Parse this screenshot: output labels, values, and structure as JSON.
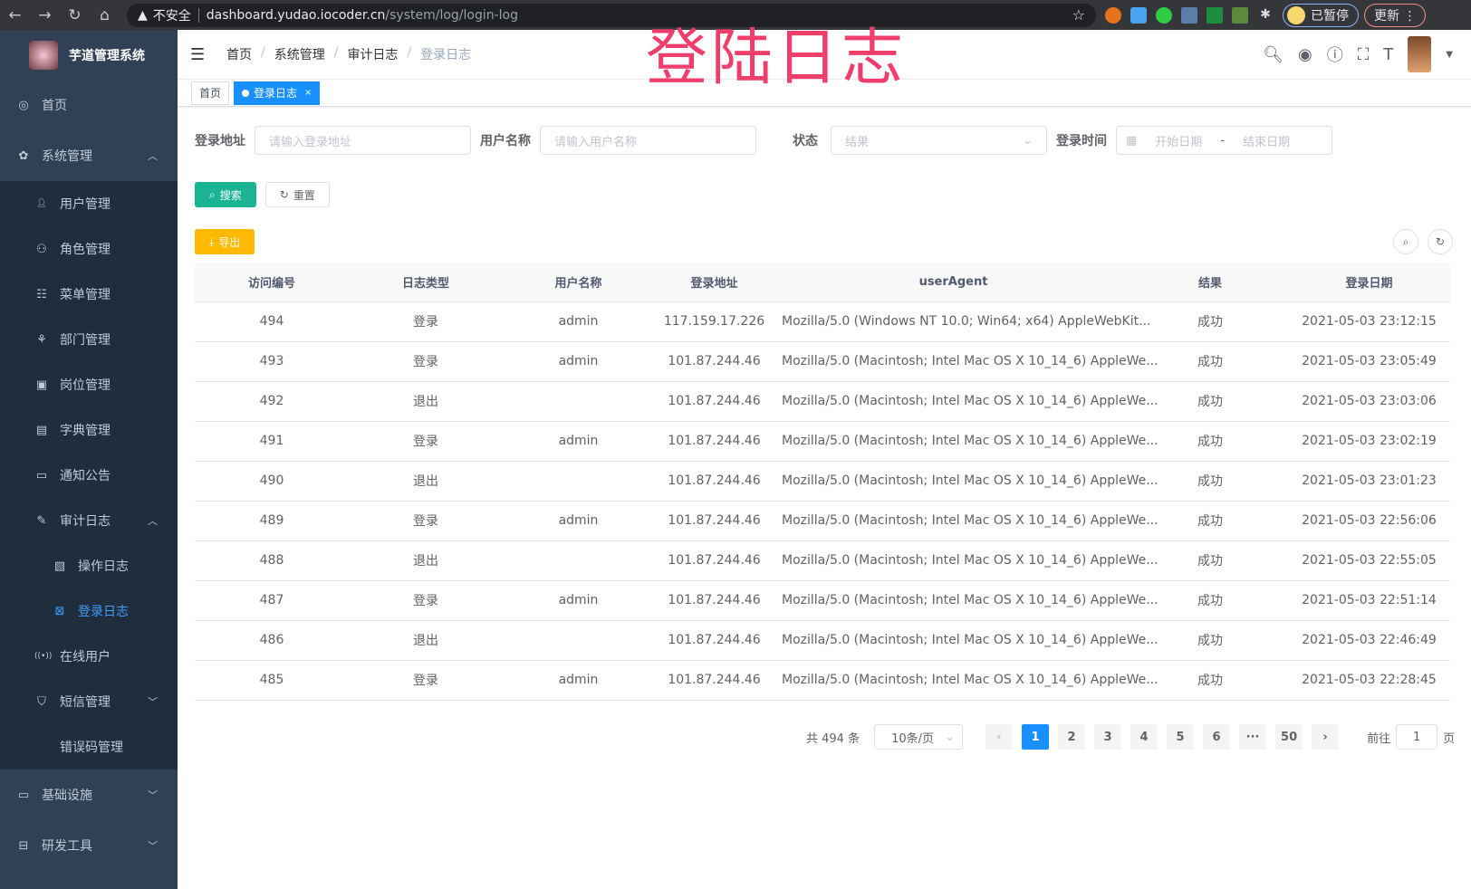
{
  "browser": {
    "insecure": "不安全",
    "url_host": "dashboard.yudao.iocoder.cn",
    "url_path": "/system/log/login-log",
    "paused": "已暂停",
    "update": "更新"
  },
  "overlay_title": "登陆日志",
  "sidebar": {
    "title": "芋道管理系统",
    "items": [
      {
        "label": "首页",
        "icon": "dashboard-icon",
        "level": 0
      },
      {
        "label": "系统管理",
        "icon": "gear-icon",
        "level": 0,
        "expanded": true
      },
      {
        "label": "用户管理",
        "icon": "user-icon",
        "level": 1
      },
      {
        "label": "角色管理",
        "icon": "role-icon",
        "level": 1
      },
      {
        "label": "菜单管理",
        "icon": "menu-tree-icon",
        "level": 1
      },
      {
        "label": "部门管理",
        "icon": "org-icon",
        "level": 1
      },
      {
        "label": "岗位管理",
        "icon": "post-icon",
        "level": 1
      },
      {
        "label": "字典管理",
        "icon": "dict-icon",
        "level": 1
      },
      {
        "label": "通知公告",
        "icon": "message-icon",
        "level": 1
      },
      {
        "label": "审计日志",
        "icon": "edit-icon",
        "level": 1,
        "expanded": true
      },
      {
        "label": "操作日志",
        "icon": "form-icon",
        "level": 2
      },
      {
        "label": "登录日志",
        "icon": "login-log-icon",
        "level": 2,
        "active": true
      },
      {
        "label": "在线用户",
        "icon": "online-icon",
        "level": 1
      },
      {
        "label": "短信管理",
        "icon": "shield-icon",
        "level": 1,
        "expanded": false
      },
      {
        "label": "错误码管理",
        "icon": "code-icon",
        "level": 1
      },
      {
        "label": "基础设施",
        "icon": "monitor-icon",
        "level": 0,
        "expanded": false
      },
      {
        "label": "研发工具",
        "icon": "tool-icon",
        "level": 0,
        "expanded": false
      }
    ]
  },
  "breadcrumb": [
    "首页",
    "系统管理",
    "审计日志",
    "登录日志"
  ],
  "tags": [
    {
      "label": "首页"
    },
    {
      "label": "登录日志",
      "active": true
    }
  ],
  "filters": {
    "address": {
      "label": "登录地址",
      "placeholder": "请输入登录地址"
    },
    "username": {
      "label": "用户名称",
      "placeholder": "请输入用户名称"
    },
    "status": {
      "label": "状态",
      "placeholder": "结果"
    },
    "time": {
      "label": "登录时间",
      "start": "开始日期",
      "sep": "-",
      "end": "结束日期"
    }
  },
  "buttons": {
    "search": "搜索",
    "reset": "重置",
    "export": "导出"
  },
  "table": {
    "columns": [
      "访问编号",
      "日志类型",
      "用户名称",
      "登录地址",
      "userAgent",
      "结果",
      "登录日期"
    ],
    "rows": [
      [
        "494",
        "登录",
        "admin",
        "117.159.17.226",
        "Mozilla/5.0 (Windows NT 10.0; Win64; x64) AppleWebKit...",
        "成功",
        "2021-05-03 23:12:15"
      ],
      [
        "493",
        "登录",
        "admin",
        "101.87.244.46",
        "Mozilla/5.0 (Macintosh; Intel Mac OS X 10_14_6) AppleWe...",
        "成功",
        "2021-05-03 23:05:49"
      ],
      [
        "492",
        "退出",
        "",
        "101.87.244.46",
        "Mozilla/5.0 (Macintosh; Intel Mac OS X 10_14_6) AppleWe...",
        "成功",
        "2021-05-03 23:03:06"
      ],
      [
        "491",
        "登录",
        "admin",
        "101.87.244.46",
        "Mozilla/5.0 (Macintosh; Intel Mac OS X 10_14_6) AppleWe...",
        "成功",
        "2021-05-03 23:02:19"
      ],
      [
        "490",
        "退出",
        "",
        "101.87.244.46",
        "Mozilla/5.0 (Macintosh; Intel Mac OS X 10_14_6) AppleWe...",
        "成功",
        "2021-05-03 23:01:23"
      ],
      [
        "489",
        "登录",
        "admin",
        "101.87.244.46",
        "Mozilla/5.0 (Macintosh; Intel Mac OS X 10_14_6) AppleWe...",
        "成功",
        "2021-05-03 22:56:06"
      ],
      [
        "488",
        "退出",
        "",
        "101.87.244.46",
        "Mozilla/5.0 (Macintosh; Intel Mac OS X 10_14_6) AppleWe...",
        "成功",
        "2021-05-03 22:55:05"
      ],
      [
        "487",
        "登录",
        "admin",
        "101.87.244.46",
        "Mozilla/5.0 (Macintosh; Intel Mac OS X 10_14_6) AppleWe...",
        "成功",
        "2021-05-03 22:51:14"
      ],
      [
        "486",
        "退出",
        "",
        "101.87.244.46",
        "Mozilla/5.0 (Macintosh; Intel Mac OS X 10_14_6) AppleWe...",
        "成功",
        "2021-05-03 22:46:49"
      ],
      [
        "485",
        "登录",
        "admin",
        "101.87.244.46",
        "Mozilla/5.0 (Macintosh; Intel Mac OS X 10_14_6) AppleWe...",
        "成功",
        "2021-05-03 22:28:45"
      ]
    ]
  },
  "pagination": {
    "total": "共 494 条",
    "page_size": "10条/页",
    "pages": [
      "1",
      "2",
      "3",
      "4",
      "5",
      "6",
      "···",
      "50"
    ],
    "current": "1",
    "goto_label": "前往",
    "goto_value": "1",
    "goto_suffix": "页"
  },
  "colors": {
    "sidebar": "#304156",
    "submenu": "#1f2d3d",
    "active": "#409eff",
    "primary": "#1ab394",
    "warning": "#ffba00",
    "tag_active": "#1890ff",
    "overlay": "#ef3d6c"
  }
}
